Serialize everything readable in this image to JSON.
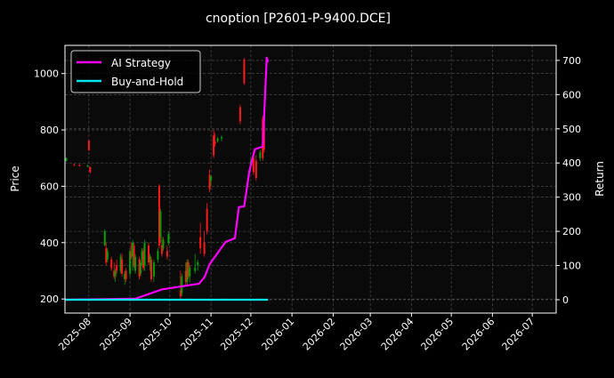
{
  "chart_data": {
    "type": "candlestick+line",
    "title": "cnoption [P2601-P-9400.DCE]",
    "ylabel_left": "Price",
    "ylabel_right": "Return",
    "xlim": [
      "2025-07-14",
      "2026-07-19"
    ],
    "ylim_left": [
      150,
      1100
    ],
    "ylim_right": [
      -39,
      744
    ],
    "x_ticks": [
      "2025-08",
      "2025-09",
      "2025-10",
      "2025-11",
      "2025-12",
      "2026-01",
      "2026-02",
      "2026-03",
      "2026-04",
      "2026-05",
      "2026-06",
      "2026-07"
    ],
    "y_ticks_left": [
      200,
      400,
      600,
      800,
      1000
    ],
    "y_ticks_right": [
      0,
      100,
      200,
      300,
      400,
      500,
      600,
      700
    ],
    "grid": true,
    "legend_placement": "top-left",
    "colors": {
      "background": "#000000",
      "up": "#00a000",
      "down": "#ff1a1a",
      "strategy": "#ff00ff",
      "buy_hold": "#00e5ee",
      "grid": "#555555"
    },
    "candles_columns": [
      "date",
      "open",
      "high",
      "low",
      "close"
    ],
    "candles": [
      [
        "2025-07-15",
        690,
        702,
        688,
        700
      ],
      [
        "2025-07-21",
        678,
        680,
        672,
        675
      ],
      [
        "2025-07-25",
        676,
        678,
        670,
        672
      ],
      [
        "2025-07-31",
        672,
        676,
        668,
        674
      ],
      [
        "2025-08-01",
        762,
        765,
        725,
        728
      ],
      [
        "2025-08-02",
        668,
        670,
        646,
        650
      ],
      [
        "2025-08-13",
        390,
        447,
        387,
        440
      ],
      [
        "2025-08-14",
        380,
        400,
        320,
        330
      ],
      [
        "2025-08-15",
        340,
        380,
        330,
        370
      ],
      [
        "2025-08-18",
        340,
        350,
        300,
        310
      ],
      [
        "2025-08-20",
        300,
        330,
        270,
        280
      ],
      [
        "2025-08-21",
        280,
        310,
        260,
        300
      ],
      [
        "2025-08-22",
        320,
        340,
        290,
        300
      ],
      [
        "2025-08-25",
        300,
        360,
        290,
        350
      ],
      [
        "2025-08-26",
        340,
        360,
        280,
        290
      ],
      [
        "2025-08-28",
        270,
        300,
        250,
        290
      ],
      [
        "2025-08-29",
        300,
        310,
        260,
        270
      ],
      [
        "2025-09-01",
        290,
        380,
        280,
        370
      ],
      [
        "2025-09-02",
        360,
        400,
        340,
        350
      ],
      [
        "2025-09-03",
        350,
        410,
        300,
        400
      ],
      [
        "2025-09-04",
        390,
        400,
        310,
        320
      ],
      [
        "2025-09-05",
        300,
        360,
        290,
        350
      ],
      [
        "2025-09-08",
        340,
        350,
        270,
        280
      ],
      [
        "2025-09-09",
        290,
        340,
        280,
        330
      ],
      [
        "2025-09-10",
        340,
        380,
        320,
        370
      ],
      [
        "2025-09-11",
        370,
        380,
        300,
        310
      ],
      [
        "2025-09-12",
        320,
        410,
        300,
        400
      ],
      [
        "2025-09-15",
        390,
        400,
        320,
        330
      ],
      [
        "2025-09-16",
        330,
        360,
        300,
        350
      ],
      [
        "2025-09-17",
        340,
        350,
        260,
        270
      ],
      [
        "2025-09-19",
        280,
        340,
        260,
        330
      ],
      [
        "2025-09-22",
        340,
        380,
        330,
        370
      ],
      [
        "2025-09-23",
        600,
        608,
        380,
        390
      ],
      [
        "2025-09-24",
        420,
        520,
        400,
        510
      ],
      [
        "2025-09-25",
        390,
        420,
        350,
        360
      ],
      [
        "2025-09-26",
        380,
        420,
        370,
        410
      ],
      [
        "2025-09-29",
        370,
        390,
        340,
        350
      ],
      [
        "2025-09-30",
        400,
        440,
        390,
        430
      ],
      [
        "2025-10-09",
        230,
        300,
        200,
        210
      ],
      [
        "2025-10-10",
        220,
        290,
        210,
        280
      ],
      [
        "2025-10-13",
        300,
        330,
        250,
        260
      ],
      [
        "2025-10-14",
        260,
        340,
        250,
        330
      ],
      [
        "2025-10-15",
        330,
        340,
        270,
        280
      ],
      [
        "2025-10-16",
        280,
        320,
        260,
        310
      ],
      [
        "2025-10-20",
        300,
        360,
        290,
        310
      ],
      [
        "2025-10-22",
        320,
        340,
        300,
        330
      ],
      [
        "2025-10-24",
        420,
        470,
        360,
        380
      ],
      [
        "2025-10-27",
        400,
        440,
        350,
        360
      ],
      [
        "2025-10-29",
        520,
        540,
        430,
        440
      ],
      [
        "2025-10-31",
        640,
        660,
        580,
        590
      ],
      [
        "2025-11-01",
        620,
        640,
        600,
        635
      ],
      [
        "2025-11-03",
        780,
        800,
        700,
        710
      ],
      [
        "2025-11-04",
        760,
        790,
        740,
        750
      ],
      [
        "2025-11-06",
        760,
        775,
        755,
        770
      ],
      [
        "2025-11-09",
        770,
        780,
        760,
        775
      ],
      [
        "2025-11-23",
        880,
        890,
        820,
        830
      ],
      [
        "2025-11-26",
        1050,
        1055,
        960,
        965
      ],
      [
        "2025-12-01",
        680,
        700,
        670,
        690
      ],
      [
        "2025-12-03",
        700,
        720,
        640,
        650
      ],
      [
        "2025-12-05",
        690,
        710,
        620,
        630
      ],
      [
        "2025-12-08",
        700,
        730,
        690,
        720
      ],
      [
        "2025-12-10",
        840,
        850,
        690,
        700
      ],
      [
        "2025-12-11",
        830,
        840,
        720,
        730
      ]
    ],
    "series": [
      {
        "name": "AI Strategy",
        "x": [
          "2025-07-14",
          "2025-09-05",
          "2025-09-25",
          "2025-10-23",
          "2025-10-27",
          "2025-10-31",
          "2025-11-12",
          "2025-11-19",
          "2025-11-22",
          "2025-11-26",
          "2025-11-30",
          "2025-12-04",
          "2025-12-10",
          "2025-12-13",
          "2025-12-14"
        ],
        "values": [
          0,
          3,
          30,
          47,
          65,
          104,
          169,
          180,
          271,
          273,
          378,
          440,
          448,
          708,
          695
        ]
      },
      {
        "name": "Buy-and-Hold",
        "x": [
          "2025-07-14",
          "2025-12-14"
        ],
        "values": [
          0,
          0
        ]
      }
    ]
  }
}
